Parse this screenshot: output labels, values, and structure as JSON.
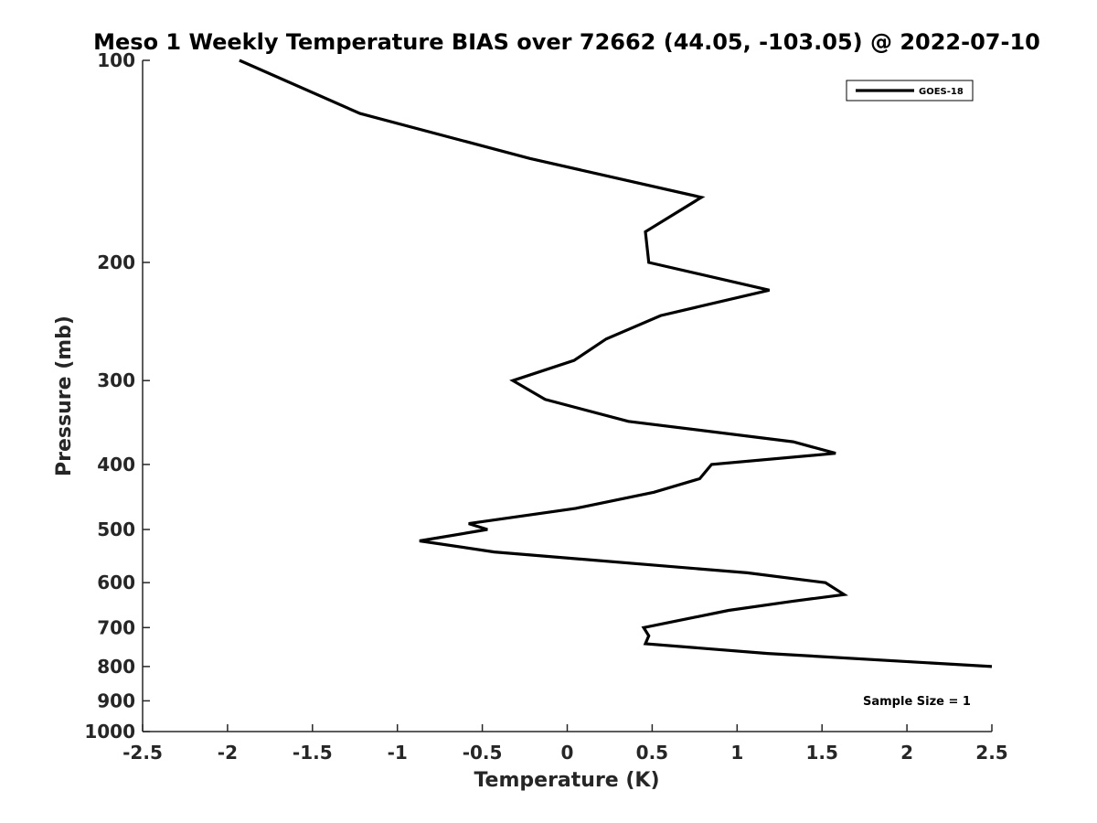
{
  "chart_data": {
    "type": "line",
    "title": "Meso 1 Weekly Temperature BIAS over 72662 (44.05, -103.05) @ 2022-07-10",
    "xlabel": "Temperature (K)",
    "ylabel": "Pressure (mb)",
    "xlim": [
      -2.5,
      2.5
    ],
    "ylim": [
      100,
      1000
    ],
    "y_scale": "log",
    "y_reversed": true,
    "grid": false,
    "legend_position": "top-right",
    "x_ticks": [
      -2.5,
      -2,
      -1.5,
      -1,
      -0.5,
      0,
      0.5,
      1,
      1.5,
      2,
      2.5
    ],
    "x_tick_labels": [
      "-2.5",
      "-2",
      "-1.5",
      "-1",
      "-0.5",
      "0",
      "0.5",
      "1",
      "1.5",
      "2",
      "2.5"
    ],
    "y_ticks": [
      100,
      200,
      300,
      400,
      500,
      600,
      700,
      800,
      900,
      1000
    ],
    "y_tick_labels": [
      "100",
      "200",
      "300",
      "400",
      "500",
      "600",
      "700",
      "800",
      "900",
      "1000"
    ],
    "series": [
      {
        "name": "GOES-18",
        "color": "#000000",
        "points": [
          {
            "x": -1.93,
            "y": 100
          },
          {
            "x": -1.22,
            "y": 120
          },
          {
            "x": -0.22,
            "y": 140
          },
          {
            "x": 0.79,
            "y": 160
          },
          {
            "x": 0.46,
            "y": 180
          },
          {
            "x": 0.48,
            "y": 200
          },
          {
            "x": 1.19,
            "y": 220
          },
          {
            "x": 0.55,
            "y": 240
          },
          {
            "x": 0.23,
            "y": 260
          },
          {
            "x": 0.04,
            "y": 280
          },
          {
            "x": -0.32,
            "y": 300
          },
          {
            "x": -0.13,
            "y": 320
          },
          {
            "x": 0.36,
            "y": 345
          },
          {
            "x": 1.33,
            "y": 370
          },
          {
            "x": 1.58,
            "y": 385
          },
          {
            "x": 0.85,
            "y": 400
          },
          {
            "x": 0.78,
            "y": 420
          },
          {
            "x": 0.51,
            "y": 440
          },
          {
            "x": 0.05,
            "y": 465
          },
          {
            "x": -0.58,
            "y": 490
          },
          {
            "x": -0.47,
            "y": 500
          },
          {
            "x": -0.87,
            "y": 520
          },
          {
            "x": -0.43,
            "y": 540
          },
          {
            "x": 1.06,
            "y": 580
          },
          {
            "x": 1.52,
            "y": 600
          },
          {
            "x": 1.63,
            "y": 625
          },
          {
            "x": 1.32,
            "y": 640
          },
          {
            "x": 0.95,
            "y": 660
          },
          {
            "x": 0.45,
            "y": 700
          },
          {
            "x": 0.48,
            "y": 720
          },
          {
            "x": 0.46,
            "y": 740
          },
          {
            "x": 1.18,
            "y": 765
          },
          {
            "x": 2.5,
            "y": 800
          }
        ]
      }
    ],
    "annotation": "Sample Size = 1"
  }
}
